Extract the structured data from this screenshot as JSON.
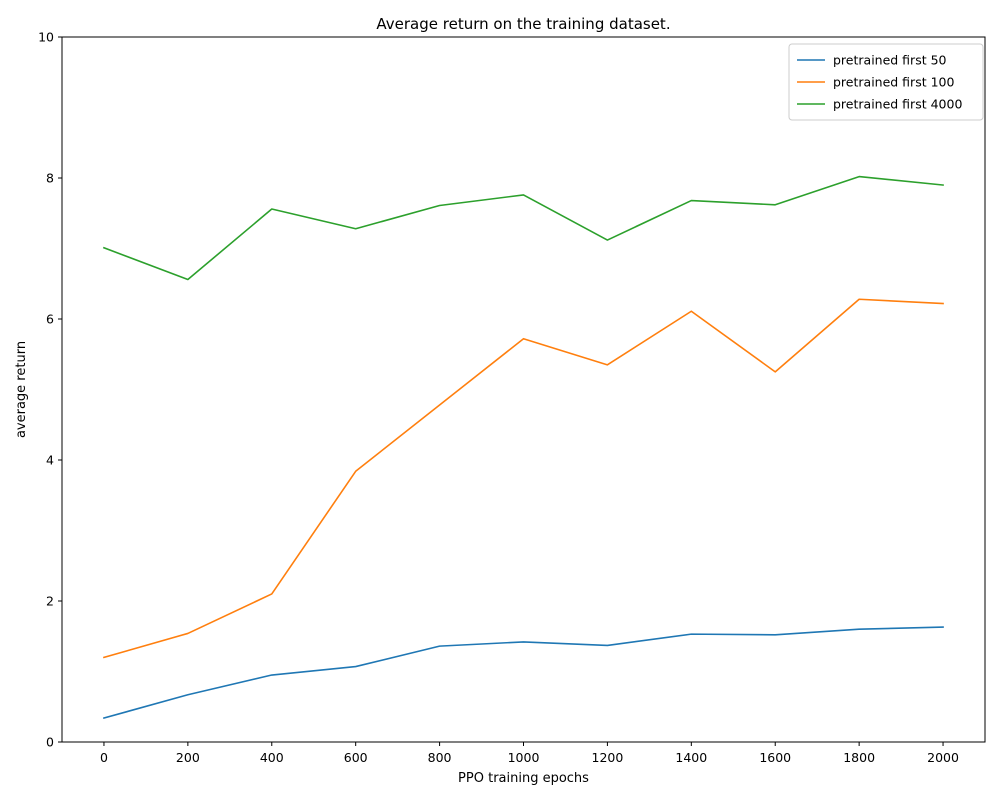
{
  "chart_data": {
    "type": "line",
    "title": "Average return on the training dataset.",
    "xlabel": "PPO training epochs",
    "ylabel": "average return",
    "x": [
      0,
      200,
      400,
      600,
      800,
      1000,
      1200,
      1400,
      1600,
      1800,
      2000
    ],
    "xticks": [
      0,
      200,
      400,
      600,
      800,
      1000,
      1200,
      1400,
      1600,
      1800,
      2000
    ],
    "yticks": [
      0,
      2,
      4,
      6,
      8,
      10
    ],
    "xlim": [
      -100,
      2100
    ],
    "ylim": [
      0,
      10
    ],
    "grid": false,
    "legend_position": "top-right",
    "series": [
      {
        "name": "pretrained first 50",
        "color": "#1f77b4",
        "values": [
          0.34,
          0.67,
          0.95,
          1.07,
          1.36,
          1.42,
          1.37,
          1.53,
          1.52,
          1.6,
          1.63
        ]
      },
      {
        "name": "pretrained first 100",
        "color": "#ff7f0e",
        "values": [
          1.2,
          1.54,
          2.1,
          3.84,
          4.78,
          5.72,
          5.35,
          6.11,
          5.25,
          6.28,
          6.22
        ]
      },
      {
        "name": "pretrained first 4000",
        "color": "#2ca02c",
        "values": [
          7.01,
          6.56,
          7.56,
          7.28,
          7.61,
          7.76,
          7.12,
          7.68,
          7.62,
          8.02,
          7.9
        ]
      }
    ]
  }
}
